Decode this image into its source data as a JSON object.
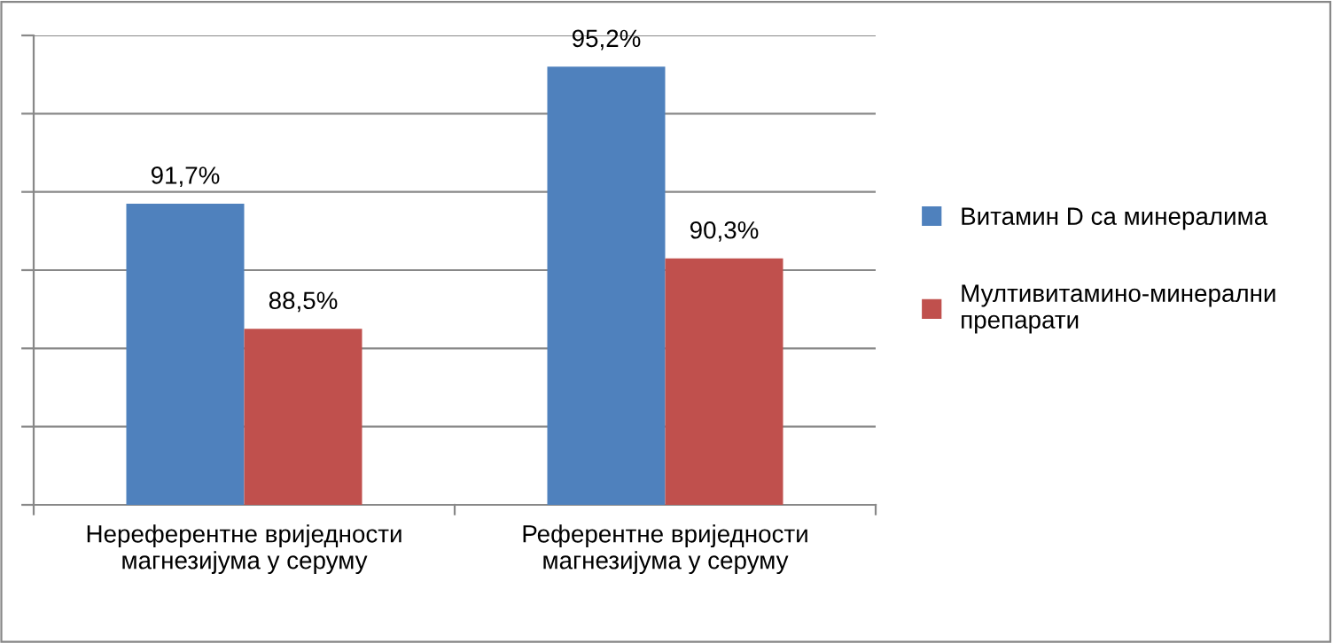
{
  "chart_data": {
    "type": "bar",
    "categories": [
      "Нереферентне вриједности магнезијума у серуму",
      "Референтне вриједности магнезијума у серуму"
    ],
    "series": [
      {
        "name": "Витамин D са минералима",
        "color": "#4f81bd",
        "values": [
          91.7,
          95.2
        ],
        "value_labels": [
          "91,7%",
          "95,2%"
        ]
      },
      {
        "name": "Мултивитамино-минерални препарати",
        "color": "#c0504d",
        "values": [
          88.5,
          90.3
        ],
        "value_labels": [
          "88,5%",
          "90,3%"
        ]
      }
    ],
    "ylim": [
      84,
      96
    ],
    "yticks": [
      {
        "value": 84,
        "label": null
      },
      {
        "value": 86,
        "label": null
      },
      {
        "value": 88,
        "label": null
      },
      {
        "value": 90,
        "label": null
      },
      {
        "value": 92,
        "label": null
      },
      {
        "value": 94,
        "label": null
      },
      {
        "value": 96,
        "label": null
      }
    ],
    "tick_labels": "x",
    "grid": "y",
    "legend": "right"
  }
}
